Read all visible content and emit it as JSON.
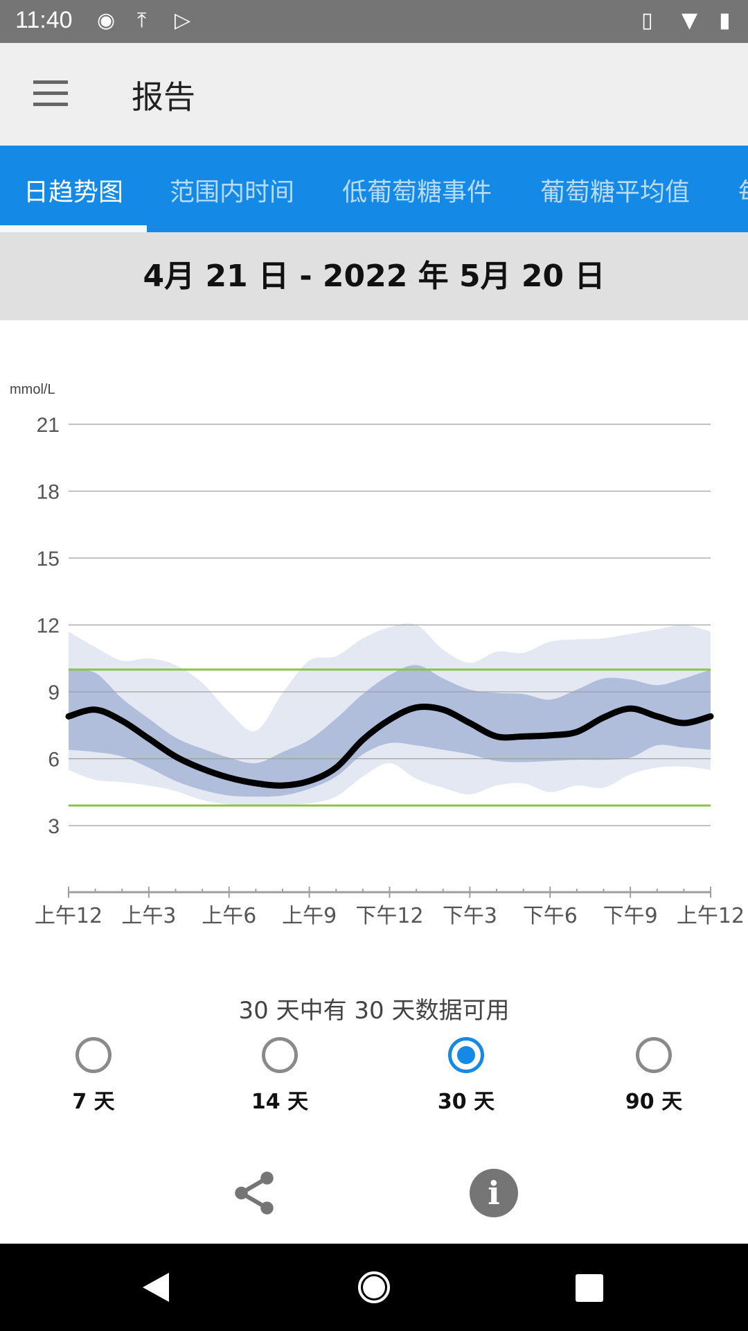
{
  "status_bar": {
    "time": "11:40",
    "icons": [
      "sync-icon",
      "upload-icon",
      "play-store-icon",
      "vibrate-icon",
      "wifi-icon",
      "battery-charging-icon"
    ]
  },
  "app_bar": {
    "title": "报告",
    "menu_icon": "hamburger-menu-icon"
  },
  "tabs": [
    {
      "label": "日趋势图",
      "active": true
    },
    {
      "label": "范围内时间"
    },
    {
      "label": "低葡萄糖事件"
    },
    {
      "label": "葡萄糖平均值"
    },
    {
      "label": "每"
    }
  ],
  "date_range": "4月 21 日 - 2022 年 5月 20 日",
  "chart_data": {
    "type": "area",
    "ylabel": "mmol/L",
    "yticks": [
      3,
      6,
      9,
      12,
      15,
      18,
      21
    ],
    "ylim": [
      0,
      21
    ],
    "xticks": [
      "上午12",
      "上午3",
      "上午6",
      "上午9",
      "下午12",
      "下午3",
      "下午6",
      "下午9",
      "上午12"
    ],
    "x_hours": [
      0,
      1,
      2,
      3,
      4,
      5,
      6,
      7,
      8,
      9,
      10,
      11,
      12,
      13,
      14,
      15,
      16,
      17,
      18,
      19,
      20,
      21,
      22,
      23,
      24
    ],
    "target_range": [
      3.9,
      10.0
    ],
    "grid": true,
    "colors": {
      "median": "#000000",
      "band_25_75": "#b0bedb",
      "band_10_90": "#e4e8f2",
      "target": "#8bc34a"
    },
    "series": {
      "p90": [
        11.7,
        11.0,
        10.4,
        10.5,
        10.2,
        9.4,
        8.1,
        7.25,
        8.95,
        10.4,
        10.6,
        11.4,
        11.9,
        12.0,
        10.9,
        10.3,
        10.8,
        10.75,
        11.25,
        11.35,
        11.4,
        11.6,
        11.8,
        12.0,
        11.7
      ],
      "p75": [
        10.0,
        9.85,
        8.7,
        7.8,
        6.95,
        6.45,
        6.05,
        5.8,
        6.3,
        6.85,
        7.8,
        8.9,
        9.75,
        10.2,
        9.6,
        9.1,
        8.95,
        8.9,
        8.65,
        9.1,
        9.6,
        9.55,
        9.3,
        9.6,
        10.0
      ],
      "median": [
        7.9,
        8.2,
        7.7,
        6.9,
        6.1,
        5.55,
        5.15,
        4.9,
        4.8,
        5.0,
        5.6,
        6.85,
        7.75,
        8.3,
        8.2,
        7.6,
        7.0,
        7.0,
        7.05,
        7.2,
        7.85,
        8.25,
        7.9,
        7.6,
        7.9
      ],
      "p25": [
        6.4,
        6.3,
        6.1,
        5.6,
        5.0,
        4.6,
        4.35,
        4.3,
        4.35,
        4.65,
        5.2,
        6.2,
        6.7,
        6.6,
        6.4,
        6.2,
        5.9,
        5.85,
        5.9,
        5.95,
        5.95,
        6.05,
        6.6,
        6.5,
        6.4
      ],
      "p10": [
        5.5,
        5.05,
        4.95,
        4.8,
        4.55,
        4.15,
        3.95,
        3.95,
        3.95,
        4.0,
        4.3,
        5.2,
        5.8,
        5.1,
        4.7,
        4.4,
        4.8,
        4.9,
        4.5,
        4.8,
        4.7,
        5.3,
        5.6,
        5.65,
        5.5
      ]
    }
  },
  "availability": "30 天中有 30 天数据可用",
  "periods": [
    {
      "label": "7 天"
    },
    {
      "label": "14 天"
    },
    {
      "label": "30 天",
      "selected": true
    },
    {
      "label": "90 天"
    }
  ],
  "actions": {
    "share_icon": "share-icon",
    "info_icon": "info-icon",
    "info_glyph": "i"
  },
  "nav": [
    "back-icon",
    "home-icon",
    "recents-icon"
  ]
}
